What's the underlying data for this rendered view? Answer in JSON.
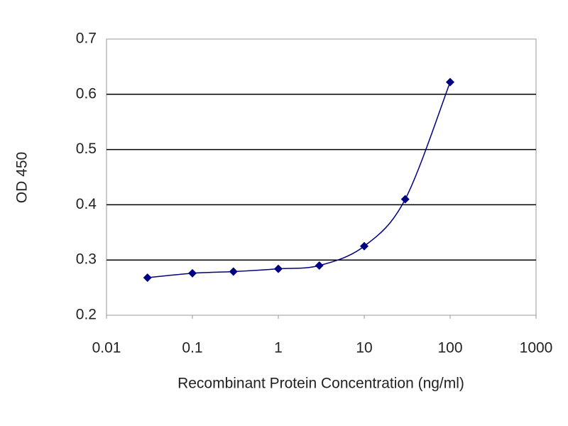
{
  "chart_data": {
    "type": "line",
    "x_label": "Recombinant Protein Concentration (ng/ml)",
    "y_label": "OD 450",
    "x": [
      0.03,
      0.1,
      0.3,
      1,
      3,
      10,
      30,
      100
    ],
    "series": [
      {
        "color": "#000080",
        "values": [
          0.268,
          0.276,
          0.279,
          0.284,
          0.29,
          0.325,
          0.41,
          0.622
        ]
      }
    ],
    "xscale": "log",
    "xlim": [
      0.01,
      1000
    ],
    "xticks": [
      0.01,
      0.1,
      1,
      10,
      100,
      1000
    ],
    "ylim": [
      0.2,
      0.7
    ],
    "yticks": [
      0.2,
      0.3,
      0.4,
      0.5,
      0.6,
      0.7
    ],
    "grid": true
  }
}
